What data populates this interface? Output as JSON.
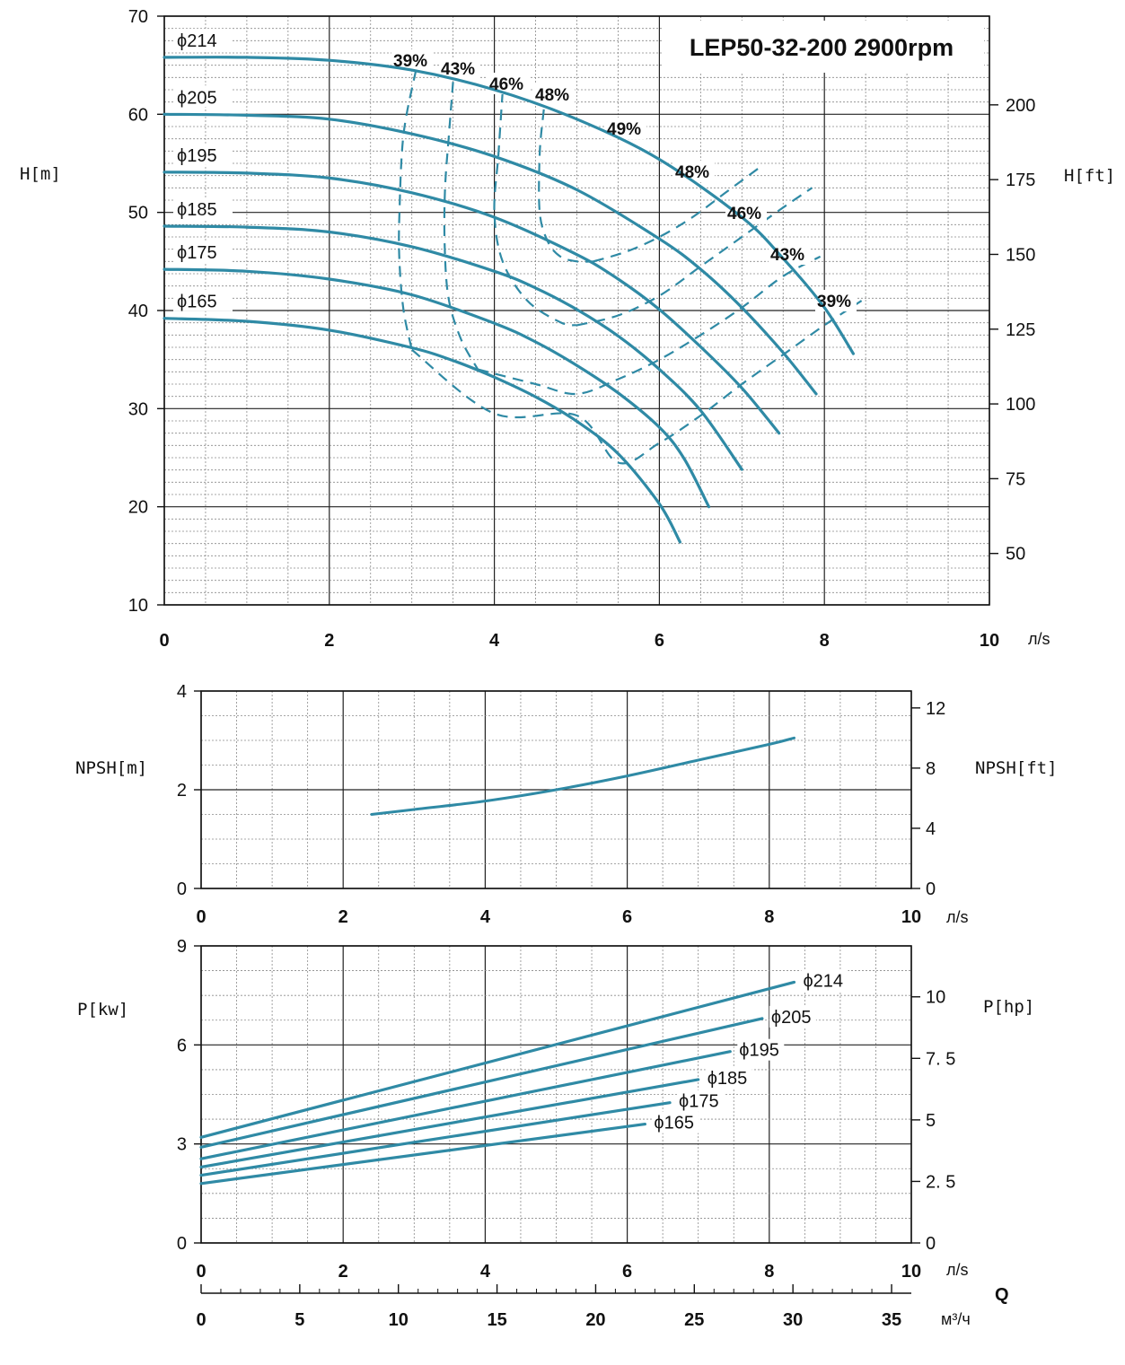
{
  "colors": {
    "curve": "#2f8aa5",
    "grid_major": "#222222",
    "grid_minor": "#8a8a8a",
    "axis": "#111111"
  },
  "chart_data": [
    {
      "type": "line",
      "title": "LEP50-32-200 2900rpm",
      "ylabel": "H[m]",
      "ylabel_right": "H[ft]",
      "xunit": "л/s",
      "xlim": [
        0,
        10
      ],
      "ylim": [
        10,
        70
      ],
      "xticks": [
        "0",
        "2",
        "4",
        "6",
        "8",
        "10"
      ],
      "yticks": [
        "10",
        "20",
        "30",
        "40",
        "50",
        "60",
        "70"
      ],
      "yticks_right": [
        "50",
        "75",
        "100",
        "125",
        "150",
        "175",
        "200"
      ],
      "series": [
        {
          "name": "ϕ214",
          "x": [
            0,
            1,
            2,
            3,
            4,
            5,
            6,
            7,
            7.5,
            8,
            8.35
          ],
          "y": [
            65.8,
            65.8,
            65.5,
            64.5,
            62.5,
            59.5,
            55.4,
            49.5,
            45.3,
            40.3,
            35.6
          ]
        },
        {
          "name": "ϕ205",
          "x": [
            0,
            1,
            2,
            3,
            4,
            5,
            6,
            6.5,
            7,
            7.5,
            7.9
          ],
          "y": [
            60,
            59.9,
            59.5,
            58,
            55.7,
            52.3,
            47.3,
            44.2,
            40.3,
            35.7,
            31.5
          ]
        },
        {
          "name": "ϕ195",
          "x": [
            0,
            1,
            2,
            3,
            4,
            5,
            5.5,
            6,
            6.5,
            7,
            7.45
          ],
          "y": [
            54.1,
            54,
            53.5,
            52,
            49.5,
            45.7,
            43.2,
            40.1,
            36.3,
            32.1,
            27.5
          ]
        },
        {
          "name": "ϕ185",
          "x": [
            0,
            1,
            2,
            3,
            4,
            4.5,
            5,
            5.5,
            6,
            6.5,
            7
          ],
          "y": [
            48.6,
            48.5,
            48,
            46.5,
            44,
            42.3,
            40.1,
            37.4,
            34,
            29.8,
            23.8
          ]
        },
        {
          "name": "ϕ175",
          "x": [
            0,
            1,
            2,
            3,
            4,
            4.5,
            5,
            5.5,
            6,
            6.3,
            6.6
          ],
          "y": [
            44.2,
            44,
            43.2,
            41.6,
            38.7,
            36.8,
            34.4,
            31.6,
            28.1,
            24.9,
            20
          ]
        },
        {
          "name": "ϕ165",
          "x": [
            0,
            1,
            2,
            3,
            3.5,
            4,
            4.5,
            5,
            5.5,
            6,
            6.25
          ],
          "y": [
            39.2,
            38.9,
            38,
            36.2,
            34.9,
            33.2,
            31.2,
            28.7,
            25.4,
            20.3,
            16.4
          ]
        }
      ],
      "efficiency_contours": [
        {
          "label": "39%",
          "x": [
            3.05,
            2.9,
            2.85,
            2.85,
            2.9,
            3.0
          ],
          "y": [
            64.5,
            58,
            50,
            45,
            40,
            36
          ]
        },
        {
          "label": "43%",
          "x": [
            3.5,
            3.45,
            3.4,
            3.4,
            3.45,
            3.6,
            3.8
          ],
          "y": [
            63.3,
            58,
            52,
            46,
            41,
            37,
            34
          ]
        },
        {
          "label": "46%",
          "x": [
            4.1,
            4.05,
            4.0,
            4.1,
            4.4,
            4.8,
            5.0
          ],
          "y": [
            62.3,
            56,
            50,
            45,
            41,
            38.8,
            38.5
          ]
        },
        {
          "label": "48%",
          "x": [
            4.6,
            4.55,
            4.55,
            4.65,
            4.8,
            5.0,
            5.2
          ],
          "y": [
            60.5,
            56,
            50,
            47,
            45.5,
            45,
            45
          ]
        },
        {
          "label": "48%",
          "x": [
            5.2,
            5.6,
            6.0,
            6.4,
            6.8,
            7.25
          ],
          "y": [
            45,
            46,
            47.5,
            49.5,
            52,
            54.8
          ]
        },
        {
          "label": "46%",
          "x": [
            5.0,
            5.5,
            6.0,
            6.5,
            7.0,
            7.5,
            7.85
          ],
          "y": [
            38.5,
            39.5,
            41.5,
            44.5,
            47.5,
            50.5,
            52.5
          ]
        },
        {
          "label": "43%",
          "x": [
            3.8,
            4.5,
            5.0,
            5.5,
            6.0,
            6.5,
            7.0,
            7.5,
            7.95
          ],
          "y": [
            34,
            32.5,
            31.5,
            33,
            35,
            37.5,
            40.3,
            43.5,
            45.5
          ]
        },
        {
          "label": "39%",
          "x": [
            3.0,
            4.0,
            5.0,
            5.5,
            6.0,
            6.5,
            7.0,
            7.5,
            8.0,
            8.45
          ],
          "y": [
            36,
            29.5,
            29.3,
            24.5,
            26.5,
            29.3,
            32.5,
            35.5,
            38.5,
            41
          ]
        }
      ]
    },
    {
      "type": "line",
      "ylabel": "NPSH[m]",
      "ylabel_right": "NPSH[ft]",
      "xunit": "л/s",
      "xlim": [
        0,
        10
      ],
      "ylim": [
        0,
        4
      ],
      "xticks": [
        "0",
        "2",
        "4",
        "6",
        "8",
        "10"
      ],
      "yticks": [
        "0",
        "2",
        "4"
      ],
      "yticks_right": [
        "0",
        "4",
        "8",
        "12"
      ],
      "series": [
        {
          "name": "NPSH",
          "x": [
            2.4,
            3,
            4,
            5,
            6,
            7,
            8,
            8.35
          ],
          "y": [
            1.5,
            1.6,
            1.77,
            2.0,
            2.28,
            2.6,
            2.92,
            3.05
          ]
        }
      ]
    },
    {
      "type": "line",
      "ylabel": "P[kw]",
      "ylabel_right": "P[hp]",
      "xunit": "л/s",
      "xlim": [
        0,
        10
      ],
      "ylim": [
        0,
        9
      ],
      "xticks": [
        "0",
        "2",
        "4",
        "6",
        "8",
        "10"
      ],
      "yticks": [
        "0",
        "3",
        "6",
        "9"
      ],
      "yticks_right": [
        "0",
        "2. 5",
        "5",
        "7. 5",
        "10"
      ],
      "q_label": "Q",
      "x2_unit": "м³/ч",
      "x2_ticks": [
        "0",
        "5",
        "10",
        "15",
        "20",
        "25",
        "30",
        "35"
      ],
      "series": [
        {
          "name": "ϕ214",
          "x": [
            0,
            8.35
          ],
          "y": [
            3.2,
            7.9
          ]
        },
        {
          "name": "ϕ205",
          "x": [
            0,
            7.9
          ],
          "y": [
            2.9,
            6.8
          ]
        },
        {
          "name": "ϕ195",
          "x": [
            0,
            7.45
          ],
          "y": [
            2.55,
            5.8
          ]
        },
        {
          "name": "ϕ185",
          "x": [
            0,
            7.0
          ],
          "y": [
            2.3,
            4.95
          ]
        },
        {
          "name": "ϕ175",
          "x": [
            0,
            6.6
          ],
          "y": [
            2.05,
            4.25
          ]
        },
        {
          "name": "ϕ165",
          "x": [
            0,
            6.25
          ],
          "y": [
            1.8,
            3.6
          ]
        }
      ]
    }
  ]
}
